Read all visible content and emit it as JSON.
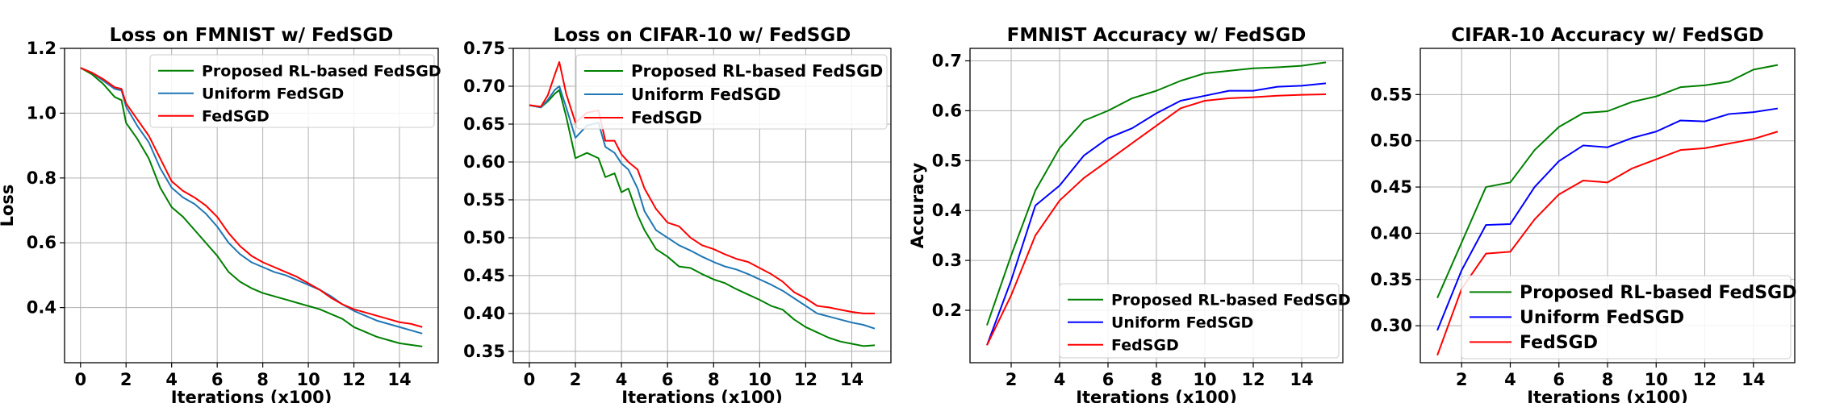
{
  "chart_data": [
    {
      "type": "line",
      "title": "Loss on FMNIST w/ FedSGD",
      "xlabel": "Iterations (x100)",
      "ylabel": "Loss",
      "xlim": [
        -0.7,
        15.7
      ],
      "ylim": [
        0.23,
        1.2
      ],
      "xticks": [
        0,
        2,
        4,
        6,
        8,
        10,
        12,
        14
      ],
      "yticks": [
        0.4,
        0.6,
        0.8,
        1.0,
        1.2
      ],
      "yticklabels": [
        "0.4",
        "0.6",
        "0.8",
        "1.0",
        "1.2"
      ],
      "legend_loc": "upper right",
      "series": [
        {
          "name": "Proposed RL-based FedSGD",
          "color": "#008000",
          "x": [
            0,
            0.5,
            1,
            1.5,
            1.8,
            2,
            2.5,
            3,
            3.5,
            4,
            4.5,
            5,
            5.5,
            6,
            6.5,
            7,
            7.5,
            8,
            8.5,
            9,
            9.5,
            10,
            10.5,
            11,
            11.5,
            12,
            12.5,
            13,
            13.5,
            14,
            14.5,
            15
          ],
          "values": [
            1.14,
            1.12,
            1.09,
            1.05,
            1.04,
            0.97,
            0.92,
            0.86,
            0.77,
            0.71,
            0.68,
            0.64,
            0.6,
            0.56,
            0.51,
            0.48,
            0.46,
            0.445,
            0.435,
            0.425,
            0.415,
            0.405,
            0.395,
            0.38,
            0.365,
            0.34,
            0.325,
            0.31,
            0.3,
            0.29,
            0.285,
            0.28
          ]
        },
        {
          "name": "Uniform FedSGD",
          "color": "#1f77b4",
          "x": [
            0,
            0.5,
            1,
            1.5,
            1.8,
            2,
            2.5,
            3,
            3.5,
            4,
            4.5,
            5,
            5.5,
            6,
            6.5,
            7,
            7.5,
            8,
            8.5,
            9,
            9.5,
            10,
            10.5,
            11,
            11.5,
            12,
            12.5,
            13,
            13.5,
            14,
            14.5,
            15
          ],
          "values": [
            1.14,
            1.125,
            1.1,
            1.075,
            1.07,
            1.02,
            0.96,
            0.91,
            0.83,
            0.77,
            0.74,
            0.72,
            0.69,
            0.65,
            0.6,
            0.565,
            0.54,
            0.525,
            0.51,
            0.5,
            0.485,
            0.47,
            0.455,
            0.435,
            0.41,
            0.39,
            0.375,
            0.36,
            0.35,
            0.34,
            0.33,
            0.32
          ]
        },
        {
          "name": "FedSGD",
          "color": "#ff0000",
          "x": [
            0,
            0.5,
            1,
            1.5,
            1.8,
            2,
            2.5,
            3,
            3.5,
            4,
            4.5,
            5,
            5.5,
            6,
            6.5,
            7,
            7.5,
            8,
            8.5,
            9,
            9.5,
            10,
            10.5,
            11,
            11.5,
            12,
            12.5,
            13,
            13.5,
            14,
            14.5,
            15
          ],
          "values": [
            1.14,
            1.125,
            1.105,
            1.08,
            1.075,
            1.03,
            0.98,
            0.93,
            0.86,
            0.79,
            0.76,
            0.74,
            0.715,
            0.68,
            0.63,
            0.59,
            0.56,
            0.54,
            0.525,
            0.51,
            0.495,
            0.475,
            0.455,
            0.43,
            0.41,
            0.395,
            0.385,
            0.375,
            0.365,
            0.355,
            0.35,
            0.34
          ]
        }
      ]
    },
    {
      "type": "line",
      "title": "Loss on CIFAR-10 w/ FedSGD",
      "xlabel": "Iterations (x100)",
      "ylabel": "",
      "xlim": [
        -0.7,
        15.7
      ],
      "ylim": [
        0.335,
        0.75
      ],
      "xticks": [
        0,
        2,
        4,
        6,
        8,
        10,
        12,
        14
      ],
      "yticks": [
        0.35,
        0.4,
        0.45,
        0.5,
        0.55,
        0.6,
        0.65,
        0.7,
        0.75
      ],
      "yticklabels": [
        "0.35",
        "0.40",
        "0.45",
        "0.50",
        "0.55",
        "0.60",
        "0.65",
        "0.70",
        "0.75"
      ],
      "legend_loc": "upper right",
      "series": [
        {
          "name": "Proposed RL-based FedSGD",
          "color": "#008000",
          "x": [
            0,
            0.5,
            0.8,
            1.1,
            1.3,
            1.6,
            2,
            2.5,
            3,
            3.3,
            3.7,
            4,
            4.3,
            4.7,
            5,
            5.5,
            6,
            6.5,
            7,
            7.5,
            8,
            8.5,
            9,
            9.5,
            10,
            10.5,
            11,
            11.5,
            12,
            12.5,
            13,
            13.5,
            14,
            14.5,
            15
          ],
          "values": [
            0.675,
            0.672,
            0.68,
            0.69,
            0.695,
            0.66,
            0.605,
            0.612,
            0.605,
            0.58,
            0.585,
            0.56,
            0.565,
            0.53,
            0.51,
            0.485,
            0.475,
            0.462,
            0.46,
            0.452,
            0.445,
            0.44,
            0.432,
            0.425,
            0.418,
            0.41,
            0.405,
            0.392,
            0.382,
            0.375,
            0.368,
            0.363,
            0.36,
            0.357,
            0.358
          ]
        },
        {
          "name": "Uniform FedSGD",
          "color": "#1f77b4",
          "x": [
            0,
            0.5,
            0.8,
            1.1,
            1.3,
            1.6,
            2,
            2.5,
            3,
            3.3,
            3.7,
            4,
            4.3,
            4.7,
            5,
            5.5,
            6,
            6.5,
            7,
            7.5,
            8,
            8.5,
            9,
            9.5,
            10,
            10.5,
            11,
            11.5,
            12,
            12.5,
            13,
            13.5,
            14,
            14.5,
            15
          ],
          "values": [
            0.675,
            0.672,
            0.682,
            0.695,
            0.7,
            0.672,
            0.632,
            0.648,
            0.652,
            0.62,
            0.612,
            0.598,
            0.59,
            0.565,
            0.535,
            0.51,
            0.5,
            0.49,
            0.483,
            0.475,
            0.468,
            0.462,
            0.458,
            0.452,
            0.445,
            0.438,
            0.43,
            0.42,
            0.41,
            0.4,
            0.396,
            0.392,
            0.388,
            0.385,
            0.38
          ]
        },
        {
          "name": "FedSGD",
          "color": "#ff0000",
          "x": [
            0,
            0.5,
            0.8,
            1.1,
            1.3,
            1.6,
            2,
            2.5,
            3,
            3.3,
            3.7,
            4,
            4.3,
            4.7,
            5,
            5.5,
            6,
            6.5,
            7,
            7.5,
            8,
            8.5,
            9,
            9.5,
            10,
            10.5,
            11,
            11.5,
            12,
            12.5,
            13,
            13.5,
            14,
            14.5,
            15
          ],
          "values": [
            0.675,
            0.673,
            0.688,
            0.715,
            0.732,
            0.69,
            0.652,
            0.665,
            0.668,
            0.628,
            0.628,
            0.61,
            0.6,
            0.59,
            0.565,
            0.538,
            0.52,
            0.515,
            0.5,
            0.49,
            0.485,
            0.478,
            0.472,
            0.468,
            0.46,
            0.452,
            0.442,
            0.428,
            0.42,
            0.41,
            0.408,
            0.405,
            0.402,
            0.4,
            0.4
          ]
        }
      ]
    },
    {
      "type": "line",
      "title": "FMNIST Accuracy w/ FedSGD",
      "xlabel": "Iterations (x100)",
      "ylabel": "Accuracy",
      "xlim": [
        0.3,
        15.7
      ],
      "ylim": [
        0.095,
        0.725
      ],
      "xticks": [
        2,
        4,
        6,
        8,
        10,
        12,
        14
      ],
      "yticks": [
        0.2,
        0.3,
        0.4,
        0.5,
        0.6,
        0.7
      ],
      "yticklabels": [
        "0.2",
        "0.3",
        "0.4",
        "0.5",
        "0.6",
        "0.7"
      ],
      "legend_loc": "lower right",
      "series": [
        {
          "name": "Proposed RL-based FedSGD",
          "color": "#008000",
          "x": [
            1,
            2,
            3,
            4,
            5,
            6,
            7,
            8,
            9,
            10,
            11,
            12,
            13,
            14,
            15
          ],
          "values": [
            0.17,
            0.31,
            0.44,
            0.525,
            0.58,
            0.6,
            0.625,
            0.64,
            0.66,
            0.675,
            0.68,
            0.685,
            0.687,
            0.69,
            0.697
          ]
        },
        {
          "name": "Uniform FedSGD",
          "color": "#0000ff",
          "x": [
            1,
            2,
            3,
            4,
            5,
            6,
            7,
            8,
            9,
            10,
            11,
            12,
            13,
            14,
            15
          ],
          "values": [
            0.13,
            0.26,
            0.41,
            0.45,
            0.51,
            0.545,
            0.565,
            0.595,
            0.62,
            0.63,
            0.64,
            0.64,
            0.648,
            0.65,
            0.655
          ]
        },
        {
          "name": "FedSGD",
          "color": "#ff0000",
          "x": [
            1,
            2,
            3,
            4,
            5,
            6,
            7,
            8,
            9,
            10,
            11,
            12,
            13,
            14,
            15
          ],
          "values": [
            0.13,
            0.23,
            0.35,
            0.42,
            0.465,
            0.5,
            0.535,
            0.57,
            0.605,
            0.62,
            0.625,
            0.627,
            0.63,
            0.632,
            0.633
          ]
        }
      ]
    },
    {
      "type": "line",
      "title": "CIFAR-10 Accuracy w/ FedSGD",
      "xlabel": "Iterations (x100)",
      "ylabel": "",
      "xlim": [
        0.3,
        15.7
      ],
      "ylim": [
        0.26,
        0.6
      ],
      "xticks": [
        2,
        4,
        6,
        8,
        10,
        12,
        14
      ],
      "yticks": [
        0.3,
        0.35,
        0.4,
        0.45,
        0.5,
        0.55
      ],
      "yticklabels": [
        "0.30",
        "0.35",
        "0.40",
        "0.45",
        "0.50",
        "0.55"
      ],
      "legend_loc": "lower right",
      "series": [
        {
          "name": "Proposed RL-based FedSGD",
          "color": "#008000",
          "x": [
            1,
            2,
            3,
            4,
            5,
            6,
            7,
            8,
            9,
            10,
            11,
            12,
            13,
            14,
            15
          ],
          "values": [
            0.33,
            0.39,
            0.45,
            0.455,
            0.49,
            0.515,
            0.53,
            0.532,
            0.542,
            0.548,
            0.558,
            0.56,
            0.564,
            0.577,
            0.582
          ]
        },
        {
          "name": "Uniform FedSGD",
          "color": "#0000ff",
          "x": [
            1,
            2,
            3,
            4,
            5,
            6,
            7,
            8,
            9,
            10,
            11,
            12,
            13,
            14,
            15
          ],
          "values": [
            0.295,
            0.36,
            0.409,
            0.41,
            0.45,
            0.478,
            0.495,
            0.493,
            0.503,
            0.51,
            0.522,
            0.521,
            0.529,
            0.531,
            0.535
          ]
        },
        {
          "name": "FedSGD",
          "color": "#ff0000",
          "x": [
            1,
            2,
            3,
            4,
            5,
            6,
            7,
            8,
            9,
            10,
            11,
            12,
            13,
            14,
            15
          ],
          "values": [
            0.268,
            0.34,
            0.378,
            0.38,
            0.415,
            0.442,
            0.457,
            0.455,
            0.47,
            0.48,
            0.49,
            0.492,
            0.497,
            0.502,
            0.51
          ]
        }
      ]
    }
  ]
}
